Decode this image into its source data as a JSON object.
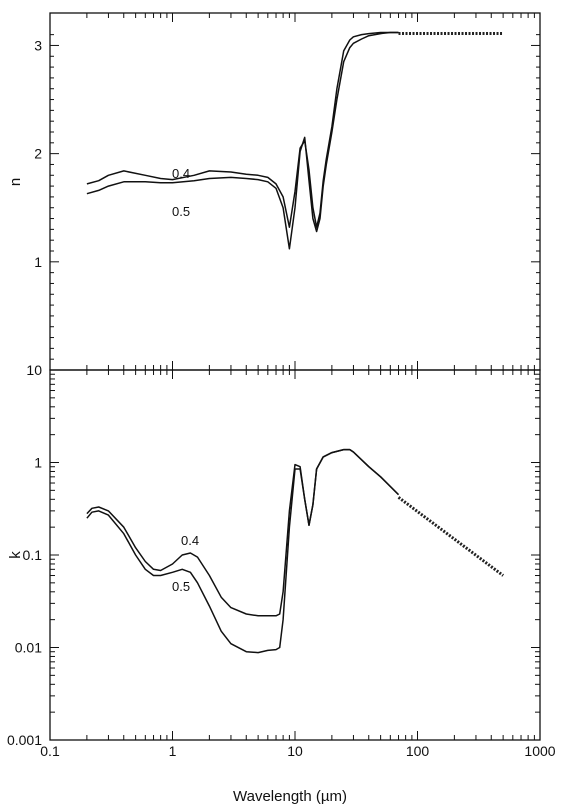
{
  "chart_data": [
    {
      "type": "line",
      "panel": "top",
      "ylabel": "n",
      "xscale": "log",
      "xlim": [
        0.1,
        1000
      ],
      "ylim": [
        0,
        3.3
      ],
      "yticks": [
        1,
        2,
        3
      ],
      "ytick_labels": [
        "1",
        "2",
        "3"
      ],
      "grid": false,
      "series": [
        {
          "name": "0.4",
          "x": [
            0.2,
            0.25,
            0.3,
            0.4,
            0.6,
            0.8,
            1.0,
            1.5,
            2.0,
            3.0,
            4.0,
            5.0,
            6.0,
            7.0,
            8.0,
            9.0,
            10.0,
            11.0,
            12.0,
            13.0,
            14.0,
            15.0,
            16.0,
            17.0,
            18.0,
            20.0,
            22.0,
            25.0,
            28.0,
            30.0,
            35.0,
            40.0,
            50.0,
            60.0,
            70.0
          ],
          "y": [
            1.72,
            1.75,
            1.8,
            1.84,
            1.8,
            1.77,
            1.76,
            1.8,
            1.84,
            1.83,
            1.81,
            1.8,
            1.78,
            1.72,
            1.6,
            1.32,
            1.65,
            2.05,
            2.12,
            1.85,
            1.5,
            1.32,
            1.45,
            1.75,
            1.95,
            2.25,
            2.6,
            2.95,
            3.05,
            3.08,
            3.1,
            3.11,
            3.12,
            3.12,
            3.12
          ]
        },
        {
          "name": "0.5",
          "x": [
            0.2,
            0.25,
            0.3,
            0.4,
            0.6,
            0.8,
            1.0,
            1.5,
            2.0,
            3.0,
            4.0,
            5.0,
            6.0,
            7.0,
            8.0,
            9.0,
            10.0,
            11.0,
            12.0,
            13.0,
            14.0,
            15.0,
            16.0,
            17.0,
            18.0,
            20.0,
            22.0,
            25.0,
            28.0,
            30.0,
            35.0,
            40.0,
            50.0,
            60.0,
            70.0
          ],
          "y": [
            1.63,
            1.66,
            1.7,
            1.74,
            1.74,
            1.73,
            1.73,
            1.75,
            1.77,
            1.78,
            1.77,
            1.76,
            1.74,
            1.68,
            1.5,
            1.12,
            1.5,
            2.02,
            2.15,
            1.75,
            1.4,
            1.28,
            1.4,
            1.7,
            1.9,
            2.2,
            2.5,
            2.85,
            2.98,
            3.02,
            3.06,
            3.09,
            3.11,
            3.12,
            3.12
          ]
        }
      ],
      "extension": {
        "x": [
          70,
          500
        ],
        "y": [
          3.11,
          3.11
        ]
      },
      "annotations": [
        "0.4",
        "0.5"
      ]
    },
    {
      "type": "line",
      "panel": "bottom",
      "xlabel": "Wavelength (µm)",
      "ylabel": "k",
      "xscale": "log",
      "yscale": "log",
      "xlim": [
        0.1,
        1000
      ],
      "ylim": [
        0.001,
        10
      ],
      "xticks": [
        0.1,
        1,
        10,
        100,
        1000
      ],
      "xtick_labels": [
        "0.1",
        "1",
        "10",
        "100",
        "1000"
      ],
      "yticks": [
        0.001,
        0.01,
        0.1,
        1,
        10
      ],
      "ytick_labels": [
        "0.001",
        "0.01",
        "0.1",
        "1",
        "10"
      ],
      "grid": false,
      "series": [
        {
          "name": "0.4",
          "x": [
            0.2,
            0.22,
            0.25,
            0.3,
            0.4,
            0.5,
            0.6,
            0.7,
            0.8,
            1.0,
            1.2,
            1.4,
            1.6,
            2.0,
            2.5,
            3.0,
            4.0,
            5.0,
            6.0,
            7.0,
            7.5,
            8.0,
            9.0,
            10.0,
            11.0,
            12.0,
            13.0,
            14.0,
            15.0,
            17.0,
            20.0,
            25.0,
            28.0,
            30.0,
            40.0,
            50.0,
            70.0
          ],
          "y": [
            0.28,
            0.32,
            0.33,
            0.3,
            0.2,
            0.12,
            0.085,
            0.07,
            0.068,
            0.08,
            0.1,
            0.105,
            0.095,
            0.06,
            0.035,
            0.027,
            0.023,
            0.022,
            0.022,
            0.022,
            0.023,
            0.04,
            0.3,
            0.95,
            0.9,
            0.4,
            0.21,
            0.35,
            0.85,
            1.15,
            1.28,
            1.38,
            1.38,
            1.3,
            0.9,
            0.7,
            0.45
          ]
        },
        {
          "name": "0.5",
          "x": [
            0.2,
            0.22,
            0.25,
            0.3,
            0.4,
            0.5,
            0.6,
            0.7,
            0.8,
            1.0,
            1.2,
            1.4,
            1.6,
            2.0,
            2.5,
            3.0,
            4.0,
            5.0,
            6.0,
            7.0,
            7.5,
            8.0,
            9.0,
            10.0,
            11.0,
            12.0,
            13.0,
            14.0,
            15.0,
            17.0,
            20.0,
            25.0,
            28.0,
            30.0,
            40.0,
            50.0,
            70.0
          ],
          "y": [
            0.25,
            0.29,
            0.3,
            0.27,
            0.17,
            0.1,
            0.07,
            0.06,
            0.06,
            0.065,
            0.07,
            0.065,
            0.05,
            0.028,
            0.015,
            0.011,
            0.009,
            0.0088,
            0.0093,
            0.0095,
            0.01,
            0.02,
            0.2,
            0.85,
            0.85,
            0.4,
            0.21,
            0.35,
            0.85,
            1.15,
            1.28,
            1.38,
            1.38,
            1.3,
            0.9,
            0.7,
            0.45
          ]
        }
      ],
      "extension": {
        "x": [
          70,
          500
        ],
        "y": [
          0.42,
          0.06
        ]
      },
      "annotations": [
        "0.4",
        "0.5"
      ]
    }
  ]
}
